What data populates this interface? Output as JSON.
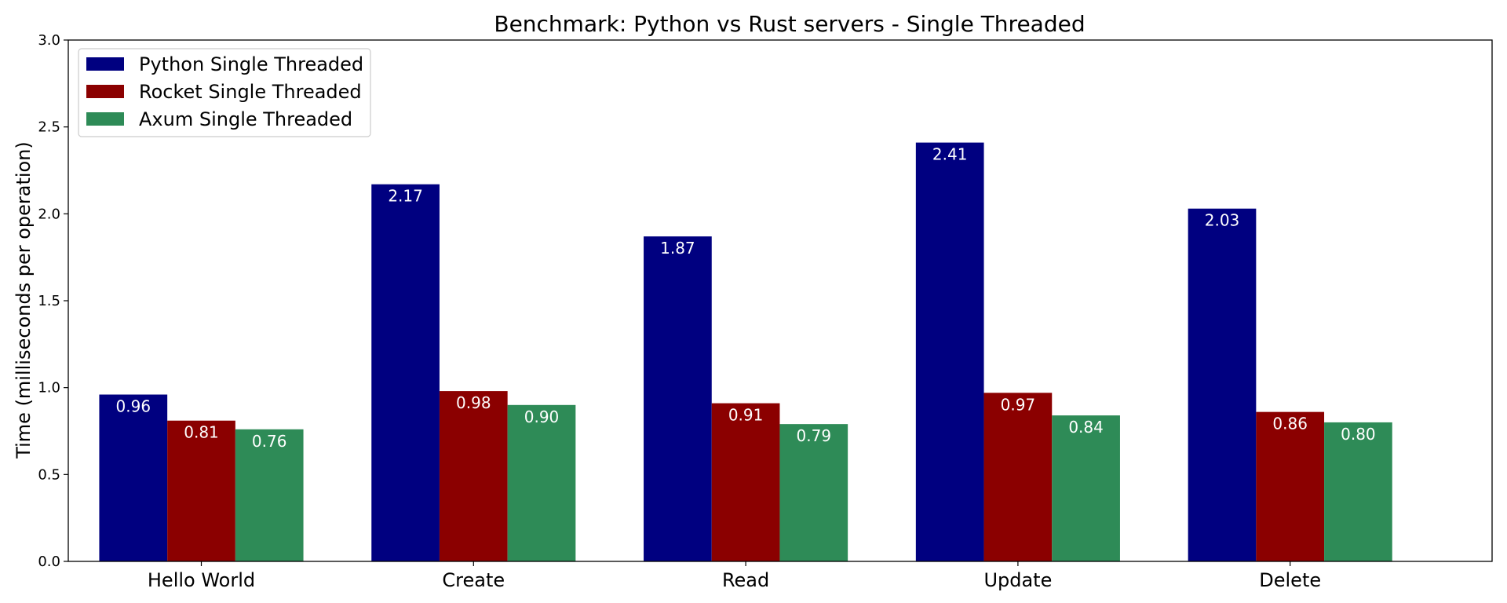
{
  "chart_data": {
    "type": "bar",
    "title": "Benchmark: Python vs Rust servers - Single Threaded",
    "xlabel": "",
    "ylabel": "Time (milliseconds per operation)",
    "categories": [
      "Hello World",
      "Create",
      "Read",
      "Update",
      "Delete"
    ],
    "ylim": [
      0,
      3.0
    ],
    "yticks": [
      "0.0",
      "0.5",
      "1.0",
      "1.5",
      "2.0",
      "2.5",
      "3.0"
    ],
    "grid": false,
    "legend_position": "top-left",
    "series": [
      {
        "name": "Python Single Threaded",
        "color": "#000080",
        "values": [
          0.96,
          2.17,
          1.87,
          2.41,
          2.03
        ],
        "labels": [
          "0.96",
          "2.17",
          "1.87",
          "2.41",
          "2.03"
        ]
      },
      {
        "name": "Rocket Single Threaded",
        "color": "#8b0000",
        "values": [
          0.81,
          0.98,
          0.91,
          0.97,
          0.86
        ],
        "labels": [
          "0.81",
          "0.98",
          "0.91",
          "0.97",
          "0.86"
        ]
      },
      {
        "name": "Axum Single Threaded",
        "color": "#2e8b57",
        "values": [
          0.76,
          0.9,
          0.79,
          0.84,
          0.8
        ],
        "labels": [
          "0.76",
          "0.90",
          "0.79",
          "0.84",
          "0.80"
        ]
      }
    ]
  }
}
